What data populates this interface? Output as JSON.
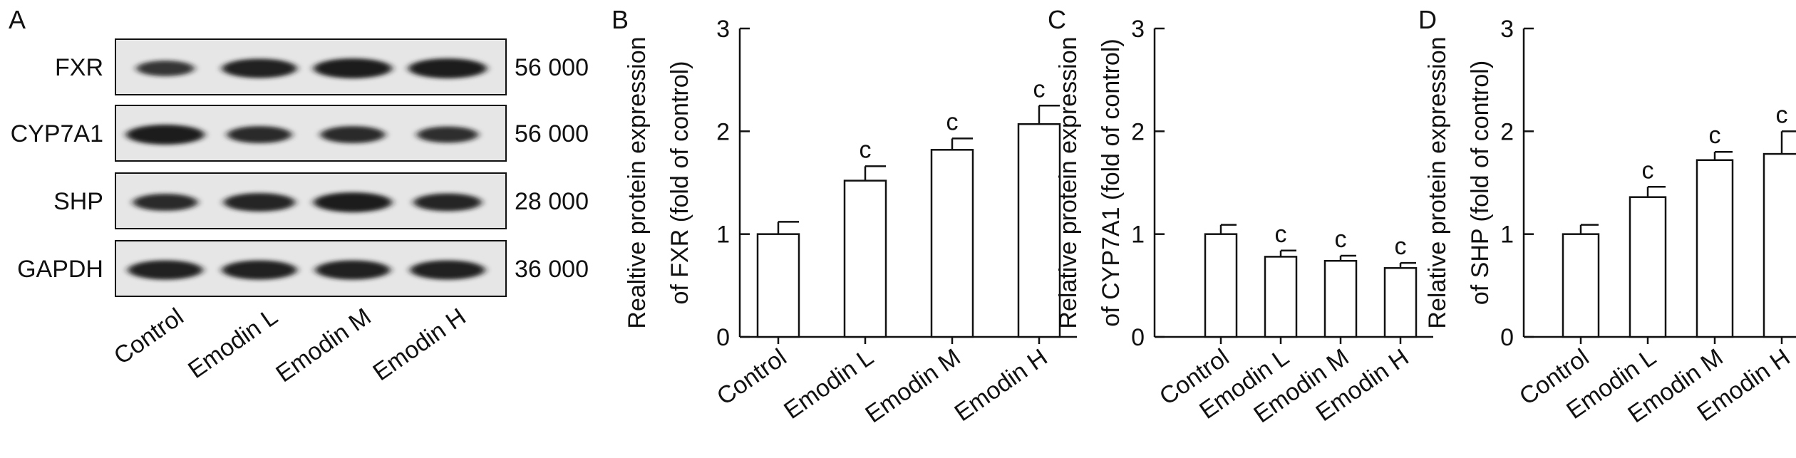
{
  "panel_a": {
    "letter": "A",
    "rows": [
      {
        "protein": "FXR",
        "weight": "56 000",
        "intensity": [
          0.7,
          0.95,
          1.0,
          1.0
        ]
      },
      {
        "protein": "CYP7A1",
        "weight": "56 000",
        "intensity": [
          1.0,
          0.8,
          0.8,
          0.75
        ]
      },
      {
        "protein": "SHP",
        "weight": "28 000",
        "intensity": [
          0.8,
          0.9,
          1.0,
          0.85
        ]
      },
      {
        "protein": "GAPDH",
        "weight": "36 000",
        "intensity": [
          0.95,
          0.95,
          0.95,
          0.95
        ]
      }
    ],
    "lanes": [
      "Control",
      "Emodin L",
      "Emodin M",
      "Emodin H"
    ],
    "band_color": "#1a1a1a"
  },
  "chart_data": [
    {
      "type": "bar",
      "panel": "B",
      "categories": [
        "Control",
        "Emodin L",
        "Emodin M",
        "Emodin H"
      ],
      "values": [
        1.0,
        1.52,
        1.82,
        2.07
      ],
      "errors": [
        0.12,
        0.14,
        0.11,
        0.18
      ],
      "annotations": [
        "",
        "c",
        "c",
        "c"
      ],
      "ylabel": [
        "Realtive protein expression",
        "of FXR (fold of control)"
      ],
      "ylim": [
        0,
        3
      ],
      "yticks": [
        0,
        1,
        2,
        3
      ],
      "grid": false
    },
    {
      "type": "bar",
      "panel": "C",
      "categories": [
        "Control",
        "Emodin L",
        "Emodin M",
        "Emodin H"
      ],
      "values": [
        1.0,
        0.78,
        0.74,
        0.67
      ],
      "errors": [
        0.09,
        0.06,
        0.05,
        0.05
      ],
      "annotations": [
        "",
        "c",
        "c",
        "c"
      ],
      "ylabel": [
        "Relative protein expression",
        "of CYP7A1 (fold of control)"
      ],
      "ylim": [
        0,
        3
      ],
      "yticks": [
        0,
        1,
        2,
        3
      ],
      "grid": false
    },
    {
      "type": "bar",
      "panel": "D",
      "categories": [
        "Control",
        "Emodin L",
        "Emodin M",
        "Emodin H"
      ],
      "values": [
        1.0,
        1.36,
        1.72,
        1.78
      ],
      "errors": [
        0.09,
        0.1,
        0.08,
        0.22
      ],
      "annotations": [
        "",
        "c",
        "c",
        "c"
      ],
      "ylabel": [
        "Relative protein expression",
        "of SHP (fold of control)"
      ],
      "ylim": [
        0,
        3
      ],
      "yticks": [
        0,
        1,
        2,
        3
      ],
      "grid": false
    }
  ]
}
